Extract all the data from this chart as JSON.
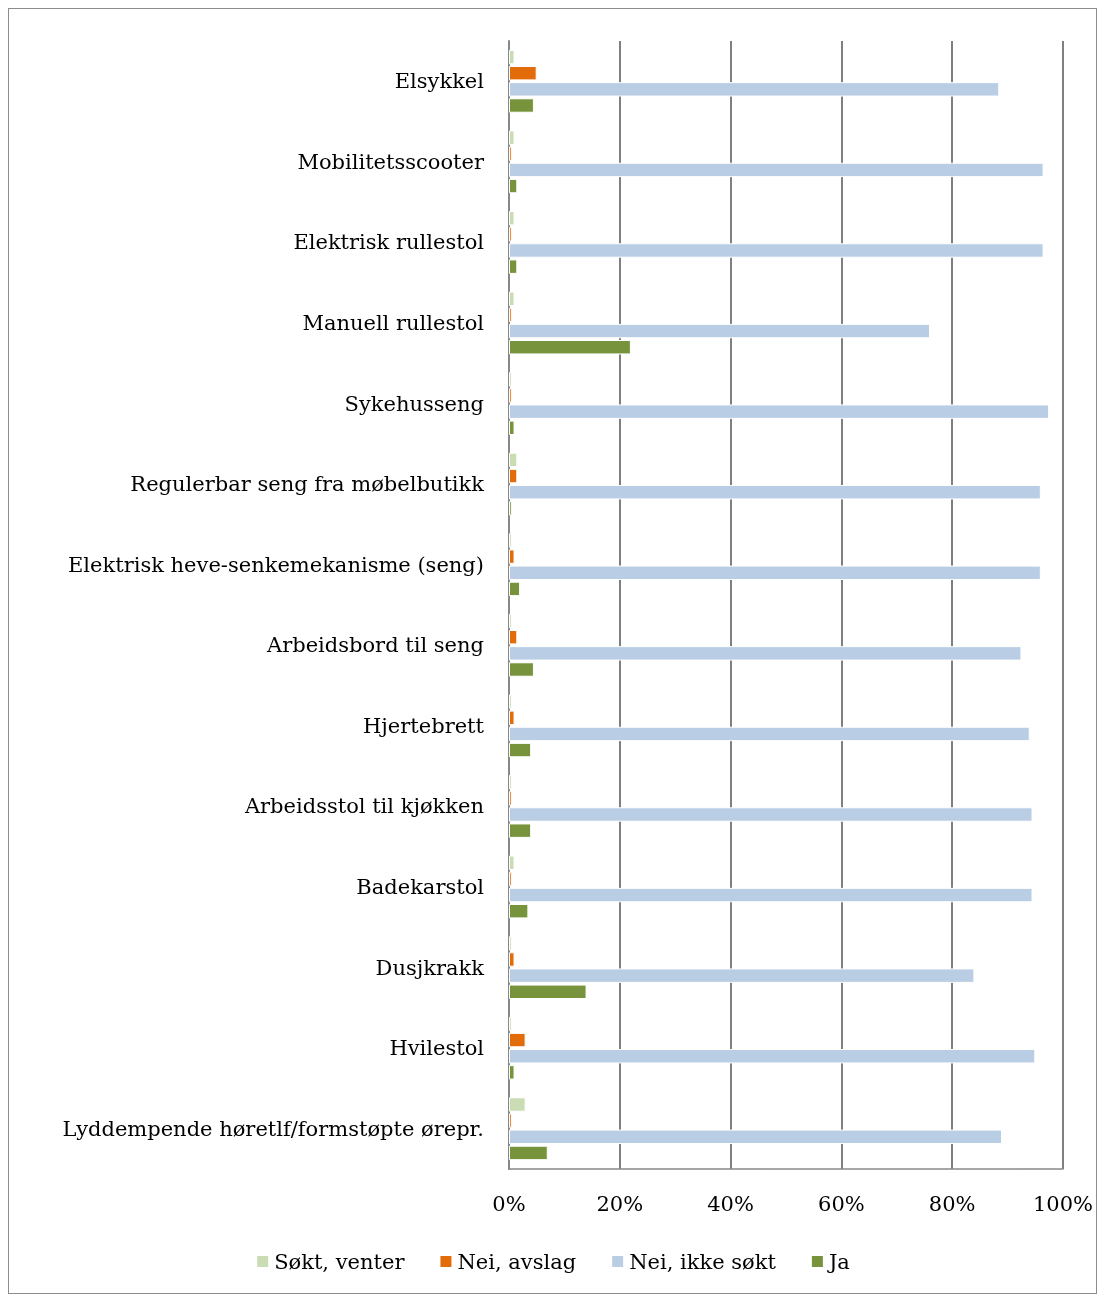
{
  "chart_data": {
    "type": "bar",
    "orientation": "horizontal",
    "categories": [
      "Elsykkel",
      "Mobilitetsscooter",
      "Elektrisk rullestol",
      "Manuell rullestol",
      "Sykehusseng",
      "Regulerbar seng fra møbelbutikk",
      "Elektrisk heve-senkemekanisme (seng)",
      "Arbeidsbord til seng",
      "Hjertebrett",
      "Arbeidsstol til kjøkken",
      "Badekarstol",
      "Dusjkrakk",
      "Hvilestol",
      "Lyddempende høretlf/formstøpte ørepr."
    ],
    "series": [
      {
        "name": "Søkt, venter",
        "color": "#c9dcb3",
        "values": [
          1,
          1,
          1,
          1,
          0.5,
          1.5,
          0.5,
          0.5,
          0.5,
          0.5,
          1,
          0.5,
          0.5,
          3
        ]
      },
      {
        "name": "Nei, avslag",
        "color": "#e36c0a",
        "values": [
          5,
          0.5,
          0.5,
          0.5,
          0.5,
          1.5,
          1,
          1.5,
          1,
          0.5,
          0.5,
          1,
          3,
          0.5
        ]
      },
      {
        "name": "Nei, ikke søkt",
        "color": "#b9cde5",
        "values": [
          88.5,
          96.5,
          96.5,
          76,
          97.5,
          96,
          96,
          92.5,
          94,
          94.5,
          94.5,
          84,
          95,
          89
        ]
      },
      {
        "name": "Ja",
        "color": "#77933c",
        "values": [
          4.5,
          1.5,
          1.5,
          22,
          1,
          0.5,
          2,
          4.5,
          4,
          4,
          3.5,
          14,
          1,
          7
        ]
      }
    ],
    "xlim": [
      0,
      100
    ],
    "xticks": [
      {
        "value": 0,
        "label": "0%"
      },
      {
        "value": 20,
        "label": "20%"
      },
      {
        "value": 40,
        "label": "40%"
      },
      {
        "value": 60,
        "label": "60%"
      },
      {
        "value": 80,
        "label": "80%"
      },
      {
        "value": 100,
        "label": "100%"
      }
    ],
    "grid": "x",
    "legend": "bottom"
  }
}
